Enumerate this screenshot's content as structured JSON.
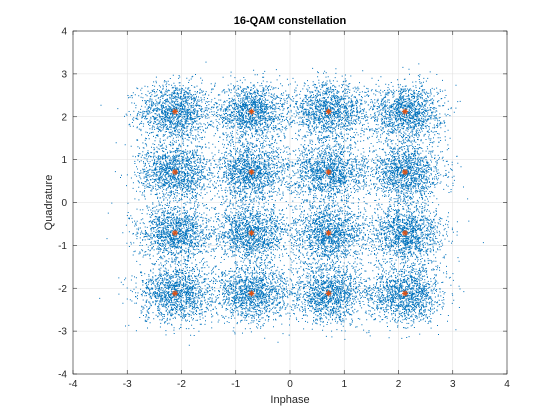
{
  "chart_data": {
    "type": "scatter",
    "title": "16-QAM constellation",
    "xlabel": "Inphase",
    "ylabel": "Quadrature",
    "xlim": [
      -4,
      4
    ],
    "ylim": [
      -4,
      4
    ],
    "xticks": [
      -4,
      -3,
      -2,
      -1,
      0,
      1,
      2,
      3,
      4
    ],
    "yticks": [
      -4,
      -3,
      -2,
      -1,
      0,
      1,
      2,
      3,
      4
    ],
    "grid": true,
    "legend": "none",
    "series": [
      {
        "role": "received-symbols",
        "color": "#0072BD",
        "cluster_std": 0.34,
        "points_per_symbol": 1400
      },
      {
        "role": "reference-constellation",
        "color": "#D95319",
        "marker": "asterisk",
        "points": [
          [
            -2.12,
            2.12
          ],
          [
            -0.71,
            2.12
          ],
          [
            0.71,
            2.12
          ],
          [
            2.12,
            2.12
          ],
          [
            -2.12,
            0.71
          ],
          [
            -0.71,
            0.71
          ],
          [
            0.71,
            0.71
          ],
          [
            2.12,
            0.71
          ],
          [
            -2.12,
            -0.71
          ],
          [
            -0.71,
            -0.71
          ],
          [
            0.71,
            -0.71
          ],
          [
            2.12,
            -0.71
          ],
          [
            -2.12,
            -2.12
          ],
          [
            -0.71,
            -2.12
          ],
          [
            0.71,
            -2.12
          ],
          [
            2.12,
            -2.12
          ]
        ]
      }
    ]
  }
}
